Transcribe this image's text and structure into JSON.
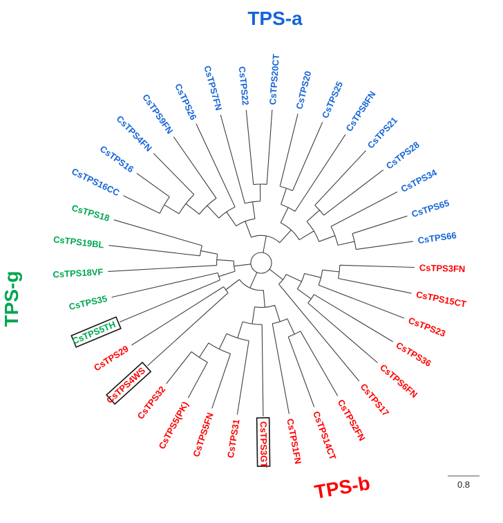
{
  "figure": {
    "group_labels": {
      "tps_a": {
        "text": "TPS-a",
        "color": "#1565d8"
      },
      "tps_g": {
        "text": "TPS-g",
        "color": "#00a651"
      },
      "tps_b": {
        "text": "TPS-b",
        "color": "#fe0000"
      }
    },
    "scale_bar": {
      "label": "0.8"
    }
  },
  "colors": {
    "tps_a": "#1565d8",
    "tps_g": "#00a651",
    "tps_b": "#fe0000",
    "branch": "#3c3c3c",
    "box_outline": "#111111"
  },
  "chart_data": {
    "type": "radial-phylogenetic-tree",
    "title": "",
    "clades": [
      {
        "id": "a",
        "label": "TPS-a",
        "color": "#1565d8"
      },
      {
        "id": "g",
        "label": "TPS-g",
        "color": "#00a651"
      },
      {
        "id": "b",
        "label": "TPS-b",
        "color": "#fe0000"
      }
    ],
    "scale_bar": {
      "label": "0.8"
    },
    "layout": {
      "start_angle_deg": 206,
      "direction": "clockwise",
      "legend": "none",
      "grid": false
    },
    "leaves": [
      {
        "name": "CsTPS16CC",
        "group": "a",
        "boxed": false
      },
      {
        "name": "CsTPS16",
        "group": "a",
        "boxed": false
      },
      {
        "name": "CsTPS4FN",
        "group": "a",
        "boxed": false
      },
      {
        "name": "CsTPS9FN",
        "group": "a",
        "boxed": false
      },
      {
        "name": "CsTPS26",
        "group": "a",
        "boxed": false
      },
      {
        "name": "CsTPS7FN",
        "group": "a",
        "boxed": false
      },
      {
        "name": "CsTPS22",
        "group": "a",
        "boxed": false
      },
      {
        "name": "CsTPS20CT",
        "group": "a",
        "boxed": false
      },
      {
        "name": "CsTPS20",
        "group": "a",
        "boxed": false
      },
      {
        "name": "CsTPS25",
        "group": "a",
        "boxed": false
      },
      {
        "name": "CsTPS8FN",
        "group": "a",
        "boxed": false
      },
      {
        "name": "CsTPS21",
        "group": "a",
        "boxed": false
      },
      {
        "name": "CsTPS28",
        "group": "a",
        "boxed": false
      },
      {
        "name": "CsTPS34",
        "group": "a",
        "boxed": false
      },
      {
        "name": "CsTPS65",
        "group": "a",
        "boxed": false
      },
      {
        "name": "CsTPS66",
        "group": "a",
        "boxed": false
      },
      {
        "name": "CsTPS3FN",
        "group": "b",
        "boxed": false
      },
      {
        "name": "CsTPS15CT",
        "group": "b",
        "boxed": false
      },
      {
        "name": "CsTPS23",
        "group": "b",
        "boxed": false
      },
      {
        "name": "CsTPS36",
        "group": "b",
        "boxed": false
      },
      {
        "name": "CsTPS6FN",
        "group": "b",
        "boxed": false
      },
      {
        "name": "CsTPS17",
        "group": "b",
        "boxed": false
      },
      {
        "name": "CsTPS2FN",
        "group": "b",
        "boxed": false
      },
      {
        "name": "CsTPS14CT",
        "group": "b",
        "boxed": false
      },
      {
        "name": "CsTPS1FN",
        "group": "b",
        "boxed": false
      },
      {
        "name": "CsTPS3GT",
        "group": "b",
        "boxed": true
      },
      {
        "name": "CsTPS31",
        "group": "b",
        "boxed": false
      },
      {
        "name": "CsTPS5FN",
        "group": "b",
        "boxed": false
      },
      {
        "name": "CsTPS5(PK)",
        "group": "b",
        "boxed": false
      },
      {
        "name": "CsTPS32",
        "group": "b",
        "boxed": false
      },
      {
        "name": "CsTPS4WS",
        "group": "b",
        "boxed": true
      },
      {
        "name": "CsTPS29",
        "group": "b",
        "boxed": false
      },
      {
        "name": "CsTPS5TH",
        "group": "g",
        "boxed": true
      },
      {
        "name": "CsTPS35",
        "group": "g",
        "boxed": false
      },
      {
        "name": "CsTPS18VF",
        "group": "g",
        "boxed": false
      },
      {
        "name": "CsTPS19BL",
        "group": "g",
        "boxed": false
      },
      {
        "name": "CsTPS18",
        "group": "g",
        "boxed": false
      }
    ],
    "topology": [
      [
        [
          [
            [
              [
                [
                  "CsTPS16CC",
                  "CsTPS16"
                ],
                "CsTPS4FN"
              ],
              "CsTPS9FN"
            ],
            "CsTPS26"
          ],
          [
            "CsTPS7FN",
            [
              "CsTPS22",
              "CsTPS20CT"
            ]
          ]
        ],
        [
          [
            [
              "CsTPS20",
              "CsTPS25"
            ],
            "CsTPS8FN"
          ],
          [
            [
              "CsTPS21",
              "CsTPS28"
            ],
            [
              "CsTPS34",
              [
                "CsTPS65",
                "CsTPS66"
              ]
            ]
          ]
        ]
      ],
      [
        [
          [
            [
              "CsTPS3FN",
              "CsTPS15CT"
            ],
            "CsTPS23"
          ],
          [
            "CsTPS36",
            "CsTPS6FN"
          ]
        ],
        "CsTPS17"
      ],
      [
        [
          [
            [
              "CsTPS2FN",
              "CsTPS14CT"
            ],
            "CsTPS1FN"
          ],
          [
            "CsTPS3GT",
            [
              "CsTPS31",
              [
                "CsTPS5FN",
                [
                  "CsTPS5(PK)",
                  "CsTPS32"
                ]
              ]
            ]
          ]
        ],
        [
          "CsTPS4WS",
          "CsTPS29"
        ]
      ],
      [
        [
          "CsTPS5TH",
          "CsTPS35"
        ],
        [
          "CsTPS18VF",
          [
            "CsTPS19BL",
            "CsTPS18"
          ]
        ]
      ]
    ]
  }
}
